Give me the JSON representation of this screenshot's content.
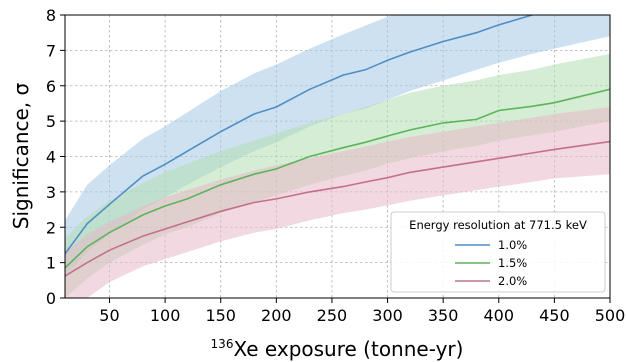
{
  "chart_data": {
    "type": "line",
    "xlabel_sup": "136",
    "xlabel_main": "Xe exposure (tonne-yr)",
    "ylabel": "Significance, σ",
    "xlim": [
      10,
      500
    ],
    "ylim": [
      0,
      8
    ],
    "xticks": [
      50,
      100,
      150,
      200,
      250,
      300,
      350,
      400,
      450,
      500
    ],
    "yticks": [
      0,
      1,
      2,
      3,
      4,
      5,
      6,
      7,
      8
    ],
    "grid": true,
    "legend_title": "Energy resolution at 771.5 keV",
    "legend_position": "lower-right",
    "x": [
      10,
      30,
      50,
      80,
      100,
      120,
      150,
      180,
      200,
      230,
      260,
      280,
      300,
      320,
      350,
      380,
      400,
      430,
      450,
      500
    ],
    "series": [
      {
        "name": "1.0%",
        "color": "#4f8ec4",
        "band_color": "#a6c8e5",
        "values": [
          1.25,
          2.1,
          2.65,
          3.45,
          3.78,
          4.15,
          4.7,
          5.2,
          5.4,
          5.9,
          6.3,
          6.45,
          6.72,
          6.95,
          7.25,
          7.5,
          7.72,
          8.0,
          8.15,
          8.5
        ],
        "lower": [
          0.6,
          1.3,
          1.8,
          2.5,
          2.85,
          3.2,
          3.7,
          4.15,
          4.4,
          4.85,
          5.2,
          5.35,
          5.6,
          5.85,
          6.15,
          6.45,
          6.65,
          6.9,
          7.05,
          7.4
        ],
        "upper": [
          2.2,
          3.2,
          3.75,
          4.5,
          4.85,
          5.25,
          5.85,
          6.35,
          6.6,
          7.05,
          7.45,
          7.7,
          7.95,
          8.2,
          8.5,
          8.8,
          9.0,
          9.2,
          9.4,
          9.8
        ]
      },
      {
        "name": "1.5%",
        "color": "#5cb45c",
        "band_color": "#b3deb3",
        "values": [
          0.85,
          1.45,
          1.85,
          2.35,
          2.6,
          2.8,
          3.2,
          3.5,
          3.65,
          4.0,
          4.25,
          4.4,
          4.58,
          4.75,
          4.95,
          5.05,
          5.3,
          5.42,
          5.52,
          5.9
        ],
        "lower": [
          0.0,
          0.55,
          1.0,
          1.5,
          1.8,
          2.0,
          2.4,
          2.7,
          2.9,
          3.2,
          3.45,
          3.6,
          3.8,
          3.95,
          4.15,
          4.3,
          4.45,
          4.6,
          4.7,
          5.0
        ],
        "upper": [
          1.7,
          2.3,
          2.75,
          3.25,
          3.55,
          3.8,
          4.15,
          4.45,
          4.65,
          4.95,
          5.2,
          5.4,
          5.6,
          5.8,
          6.0,
          6.15,
          6.3,
          6.45,
          6.6,
          6.9
        ]
      },
      {
        "name": "2.0%",
        "color": "#c4708a",
        "band_color": "#e8b8c6",
        "values": [
          0.62,
          1.0,
          1.35,
          1.75,
          1.95,
          2.15,
          2.45,
          2.7,
          2.8,
          3.0,
          3.15,
          3.28,
          3.4,
          3.55,
          3.7,
          3.85,
          3.95,
          4.1,
          4.2,
          4.42
        ],
        "lower": [
          0.0,
          0.0,
          0.45,
          0.9,
          1.1,
          1.3,
          1.6,
          1.85,
          1.95,
          2.2,
          2.4,
          2.5,
          2.62,
          2.75,
          2.9,
          3.05,
          3.15,
          3.28,
          3.38,
          3.5
        ],
        "upper": [
          1.3,
          1.8,
          2.15,
          2.6,
          2.85,
          3.05,
          3.35,
          3.6,
          3.75,
          3.95,
          4.15,
          4.28,
          4.42,
          4.55,
          4.7,
          4.85,
          4.95,
          5.1,
          5.2,
          5.4
        ]
      }
    ]
  }
}
